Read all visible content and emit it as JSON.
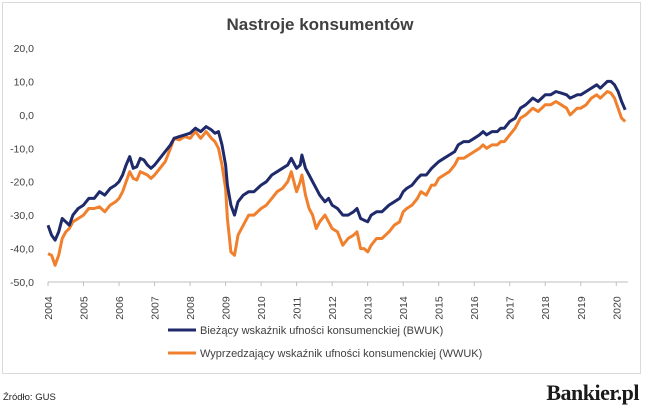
{
  "title": "Nastroje konsumentów",
  "source": "Źródło: GUS",
  "brand": "Bankier.pl",
  "chart_data": {
    "type": "line",
    "title": "Nastroje konsumentów",
    "ylim": [
      -50,
      20
    ],
    "yticks": [
      20,
      10,
      0,
      -10,
      -20,
      -30,
      -40,
      -50
    ],
    "ytick_labels": [
      "20,0",
      "10,0",
      "0,0",
      "-10,0",
      "-20,0",
      "-30,0",
      "-40,0",
      "-50,0"
    ],
    "xlim": [
      2004,
      2020.33
    ],
    "xticks": [
      "2004",
      "2005",
      "2006",
      "2007",
      "2008",
      "2009",
      "2010",
      "2011",
      "2012",
      "2013",
      "2014",
      "2015",
      "2016",
      "2017",
      "2018",
      "2019",
      "2020"
    ],
    "grid": false,
    "legend_position": "bottom",
    "series": [
      {
        "name": "Bieżący wskaźnik ufności konsumenckiej (BWUK)",
        "color": "#1f2a6b",
        "points": [
          [
            2004.0,
            -33
          ],
          [
            2004.1,
            -36
          ],
          [
            2004.2,
            -37.5
          ],
          [
            2004.3,
            -35
          ],
          [
            2004.4,
            -31
          ],
          [
            2004.5,
            -32
          ],
          [
            2004.6,
            -33
          ],
          [
            2004.7,
            -30
          ],
          [
            2004.85,
            -28
          ],
          [
            2005.0,
            -27
          ],
          [
            2005.15,
            -25
          ],
          [
            2005.3,
            -25
          ],
          [
            2005.45,
            -23
          ],
          [
            2005.6,
            -24
          ],
          [
            2005.75,
            -22
          ],
          [
            2005.9,
            -21
          ],
          [
            2006.0,
            -20
          ],
          [
            2006.1,
            -18
          ],
          [
            2006.2,
            -15
          ],
          [
            2006.3,
            -12.5
          ],
          [
            2006.4,
            -16
          ],
          [
            2006.5,
            -15.5
          ],
          [
            2006.6,
            -13
          ],
          [
            2006.7,
            -13.5
          ],
          [
            2006.8,
            -15
          ],
          [
            2006.9,
            -16
          ],
          [
            2007.0,
            -15
          ],
          [
            2007.15,
            -13
          ],
          [
            2007.3,
            -11
          ],
          [
            2007.45,
            -9
          ],
          [
            2007.55,
            -7
          ],
          [
            2007.7,
            -6.5
          ],
          [
            2007.85,
            -6
          ],
          [
            2008.0,
            -5.5
          ],
          [
            2008.15,
            -4
          ],
          [
            2008.3,
            -5
          ],
          [
            2008.45,
            -3.5
          ],
          [
            2008.6,
            -4.5
          ],
          [
            2008.7,
            -5.5
          ],
          [
            2008.8,
            -5
          ],
          [
            2008.9,
            -9
          ],
          [
            2009.0,
            -15
          ],
          [
            2009.05,
            -21
          ],
          [
            2009.15,
            -27
          ],
          [
            2009.25,
            -30
          ],
          [
            2009.35,
            -26
          ],
          [
            2009.5,
            -24
          ],
          [
            2009.65,
            -23
          ],
          [
            2009.8,
            -23
          ],
          [
            2010.0,
            -21
          ],
          [
            2010.15,
            -20
          ],
          [
            2010.3,
            -18
          ],
          [
            2010.45,
            -17
          ],
          [
            2010.6,
            -16
          ],
          [
            2010.75,
            -15
          ],
          [
            2010.85,
            -13
          ],
          [
            2010.95,
            -15
          ],
          [
            2011.0,
            -16
          ],
          [
            2011.1,
            -15
          ],
          [
            2011.15,
            -12
          ],
          [
            2011.25,
            -16
          ],
          [
            2011.35,
            -18
          ],
          [
            2011.45,
            -20
          ],
          [
            2011.55,
            -22
          ],
          [
            2011.65,
            -24
          ],
          [
            2011.8,
            -26
          ],
          [
            2011.9,
            -25
          ],
          [
            2012.0,
            -27
          ],
          [
            2012.15,
            -28
          ],
          [
            2012.3,
            -30
          ],
          [
            2012.45,
            -30
          ],
          [
            2012.6,
            -29
          ],
          [
            2012.7,
            -28
          ],
          [
            2012.8,
            -31
          ],
          [
            2012.9,
            -31.5
          ],
          [
            2013.0,
            -32
          ],
          [
            2013.1,
            -30
          ],
          [
            2013.25,
            -29
          ],
          [
            2013.4,
            -29
          ],
          [
            2013.5,
            -28
          ],
          [
            2013.6,
            -27
          ],
          [
            2013.75,
            -26
          ],
          [
            2013.9,
            -25
          ],
          [
            2014.0,
            -23
          ],
          [
            2014.1,
            -22
          ],
          [
            2014.25,
            -21
          ],
          [
            2014.4,
            -19
          ],
          [
            2014.5,
            -18
          ],
          [
            2014.65,
            -18
          ],
          [
            2014.8,
            -16
          ],
          [
            2014.9,
            -15
          ],
          [
            2015.0,
            -14
          ],
          [
            2015.15,
            -13
          ],
          [
            2015.3,
            -12
          ],
          [
            2015.45,
            -11
          ],
          [
            2015.55,
            -9
          ],
          [
            2015.7,
            -8
          ],
          [
            2015.85,
            -8
          ],
          [
            2016.0,
            -7
          ],
          [
            2016.15,
            -6
          ],
          [
            2016.25,
            -5
          ],
          [
            2016.35,
            -6
          ],
          [
            2016.5,
            -5
          ],
          [
            2016.65,
            -5
          ],
          [
            2016.75,
            -4
          ],
          [
            2016.85,
            -4
          ],
          [
            2017.0,
            -2
          ],
          [
            2017.15,
            -1
          ],
          [
            2017.3,
            2
          ],
          [
            2017.45,
            3
          ],
          [
            2017.55,
            4
          ],
          [
            2017.65,
            5
          ],
          [
            2017.8,
            4
          ],
          [
            2017.9,
            5
          ],
          [
            2018.0,
            6
          ],
          [
            2018.15,
            6
          ],
          [
            2018.3,
            7
          ],
          [
            2018.45,
            6.5
          ],
          [
            2018.6,
            6
          ],
          [
            2018.7,
            5
          ],
          [
            2018.8,
            5.5
          ],
          [
            2018.9,
            6
          ],
          [
            2019.0,
            6
          ],
          [
            2019.15,
            7
          ],
          [
            2019.3,
            8
          ],
          [
            2019.45,
            9
          ],
          [
            2019.55,
            8
          ],
          [
            2019.65,
            9
          ],
          [
            2019.75,
            10
          ],
          [
            2019.85,
            10
          ],
          [
            2019.95,
            9
          ],
          [
            2020.05,
            7
          ],
          [
            2020.15,
            4
          ],
          [
            2020.25,
            1.5
          ]
        ]
      },
      {
        "name": "Wyprzedzający wskaźnik ufności konsumenckiej (WWUK)",
        "color": "#f0802d",
        "points": [
          [
            2004.0,
            -41.5
          ],
          [
            2004.1,
            -42
          ],
          [
            2004.2,
            -45
          ],
          [
            2004.3,
            -42
          ],
          [
            2004.4,
            -37
          ],
          [
            2004.5,
            -35
          ],
          [
            2004.6,
            -34
          ],
          [
            2004.7,
            -32
          ],
          [
            2004.85,
            -31
          ],
          [
            2005.0,
            -30
          ],
          [
            2005.15,
            -28
          ],
          [
            2005.3,
            -28
          ],
          [
            2005.45,
            -27.5
          ],
          [
            2005.6,
            -29
          ],
          [
            2005.75,
            -27
          ],
          [
            2005.9,
            -26
          ],
          [
            2006.0,
            -25
          ],
          [
            2006.1,
            -23
          ],
          [
            2006.2,
            -20
          ],
          [
            2006.3,
            -17
          ],
          [
            2006.4,
            -19
          ],
          [
            2006.5,
            -19.5
          ],
          [
            2006.6,
            -17
          ],
          [
            2006.7,
            -17.5
          ],
          [
            2006.8,
            -18
          ],
          [
            2006.9,
            -19
          ],
          [
            2007.0,
            -18
          ],
          [
            2007.15,
            -16
          ],
          [
            2007.3,
            -14
          ],
          [
            2007.45,
            -10
          ],
          [
            2007.55,
            -7
          ],
          [
            2007.7,
            -7.5
          ],
          [
            2007.85,
            -6.5
          ],
          [
            2008.0,
            -7
          ],
          [
            2008.15,
            -5
          ],
          [
            2008.3,
            -7
          ],
          [
            2008.45,
            -5
          ],
          [
            2008.6,
            -7
          ],
          [
            2008.7,
            -8
          ],
          [
            2008.8,
            -10
          ],
          [
            2008.9,
            -15
          ],
          [
            2009.0,
            -22
          ],
          [
            2009.05,
            -31
          ],
          [
            2009.15,
            -41
          ],
          [
            2009.25,
            -42
          ],
          [
            2009.35,
            -36
          ],
          [
            2009.5,
            -33
          ],
          [
            2009.65,
            -30
          ],
          [
            2009.8,
            -30
          ],
          [
            2010.0,
            -28
          ],
          [
            2010.15,
            -27
          ],
          [
            2010.3,
            -25
          ],
          [
            2010.45,
            -23
          ],
          [
            2010.6,
            -22
          ],
          [
            2010.75,
            -20
          ],
          [
            2010.85,
            -17
          ],
          [
            2010.95,
            -21
          ],
          [
            2011.0,
            -23
          ],
          [
            2011.1,
            -20
          ],
          [
            2011.15,
            -18
          ],
          [
            2011.25,
            -24
          ],
          [
            2011.35,
            -28
          ],
          [
            2011.45,
            -30
          ],
          [
            2011.55,
            -34
          ],
          [
            2011.65,
            -32
          ],
          [
            2011.8,
            -30
          ],
          [
            2011.9,
            -32
          ],
          [
            2012.0,
            -34
          ],
          [
            2012.15,
            -35
          ],
          [
            2012.3,
            -39
          ],
          [
            2012.45,
            -37
          ],
          [
            2012.6,
            -36
          ],
          [
            2012.7,
            -35
          ],
          [
            2012.8,
            -40
          ],
          [
            2012.9,
            -40
          ],
          [
            2013.0,
            -41
          ],
          [
            2013.1,
            -39
          ],
          [
            2013.25,
            -37
          ],
          [
            2013.4,
            -37
          ],
          [
            2013.5,
            -36
          ],
          [
            2013.6,
            -35
          ],
          [
            2013.75,
            -33
          ],
          [
            2013.9,
            -32
          ],
          [
            2014.0,
            -29
          ],
          [
            2014.1,
            -28
          ],
          [
            2014.25,
            -27
          ],
          [
            2014.4,
            -25
          ],
          [
            2014.5,
            -23
          ],
          [
            2014.65,
            -24
          ],
          [
            2014.8,
            -21
          ],
          [
            2014.9,
            -21
          ],
          [
            2015.0,
            -19
          ],
          [
            2015.15,
            -18
          ],
          [
            2015.3,
            -17
          ],
          [
            2015.45,
            -15
          ],
          [
            2015.55,
            -13
          ],
          [
            2015.7,
            -13
          ],
          [
            2015.85,
            -12
          ],
          [
            2016.0,
            -11
          ],
          [
            2016.15,
            -10
          ],
          [
            2016.25,
            -9
          ],
          [
            2016.35,
            -10
          ],
          [
            2016.5,
            -9
          ],
          [
            2016.65,
            -9
          ],
          [
            2016.75,
            -8
          ],
          [
            2016.85,
            -8
          ],
          [
            2017.0,
            -6
          ],
          [
            2017.15,
            -4
          ],
          [
            2017.3,
            -1
          ],
          [
            2017.45,
            0
          ],
          [
            2017.55,
            1
          ],
          [
            2017.65,
            2
          ],
          [
            2017.8,
            1
          ],
          [
            2017.9,
            2
          ],
          [
            2018.0,
            3
          ],
          [
            2018.15,
            3
          ],
          [
            2018.3,
            4
          ],
          [
            2018.45,
            3
          ],
          [
            2018.6,
            2
          ],
          [
            2018.7,
            0
          ],
          [
            2018.8,
            1
          ],
          [
            2018.9,
            2
          ],
          [
            2019.0,
            2
          ],
          [
            2019.15,
            3
          ],
          [
            2019.3,
            5
          ],
          [
            2019.45,
            6
          ],
          [
            2019.55,
            5
          ],
          [
            2019.65,
            6
          ],
          [
            2019.75,
            7
          ],
          [
            2019.85,
            6.5
          ],
          [
            2019.95,
            5
          ],
          [
            2020.05,
            2
          ],
          [
            2020.15,
            -1
          ],
          [
            2020.25,
            -2
          ]
        ]
      }
    ]
  }
}
